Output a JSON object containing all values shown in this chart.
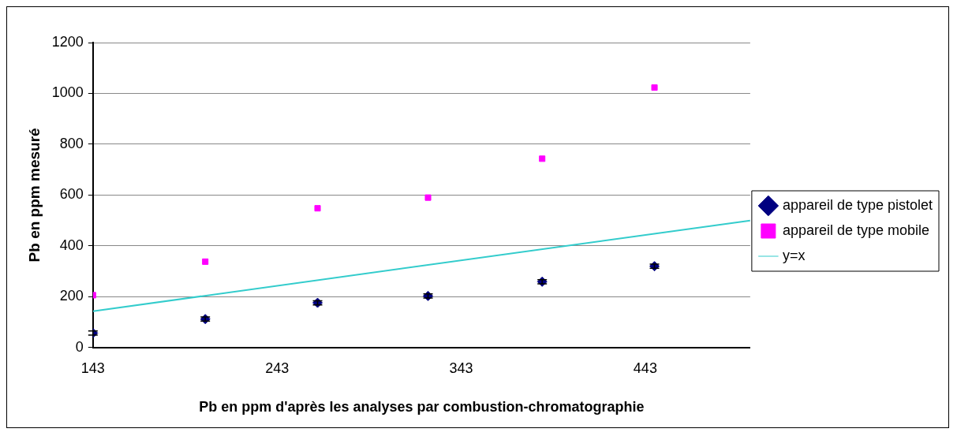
{
  "chart_data": {
    "type": "scatter",
    "xlabel": "Pb en ppm d'après les analyses par combustion-chromatographie",
    "ylabel": "Pb en ppm mesuré",
    "series": [
      {
        "name": "appareil de type pistolet",
        "color": "#000080",
        "marker": "diamond",
        "x": [
          143,
          204,
          265,
          325,
          387,
          448
        ],
        "values": [
          57,
          112,
          176,
          203,
          259,
          320
        ],
        "errors": [
          8,
          8,
          8,
          8,
          8,
          8
        ]
      },
      {
        "name": "appareil de type mobile",
        "color": "#ff00ff",
        "marker": "square",
        "x": [
          143,
          204,
          265,
          325,
          387,
          448
        ],
        "values": [
          206,
          338,
          548,
          590,
          743,
          1023
        ]
      },
      {
        "name": "y=x",
        "type": "line",
        "color": "#33cccc",
        "marker": "none",
        "x": [
          143,
          500
        ],
        "values": [
          143,
          500
        ]
      }
    ],
    "xlim": [
      143,
      500
    ],
    "xticks": [
      143,
      243,
      343,
      443
    ],
    "ylim": [
      0,
      1200
    ],
    "yticks": [
      0,
      200,
      400,
      600,
      800,
      1000,
      1200
    ],
    "grid": "y",
    "legend": "right"
  }
}
